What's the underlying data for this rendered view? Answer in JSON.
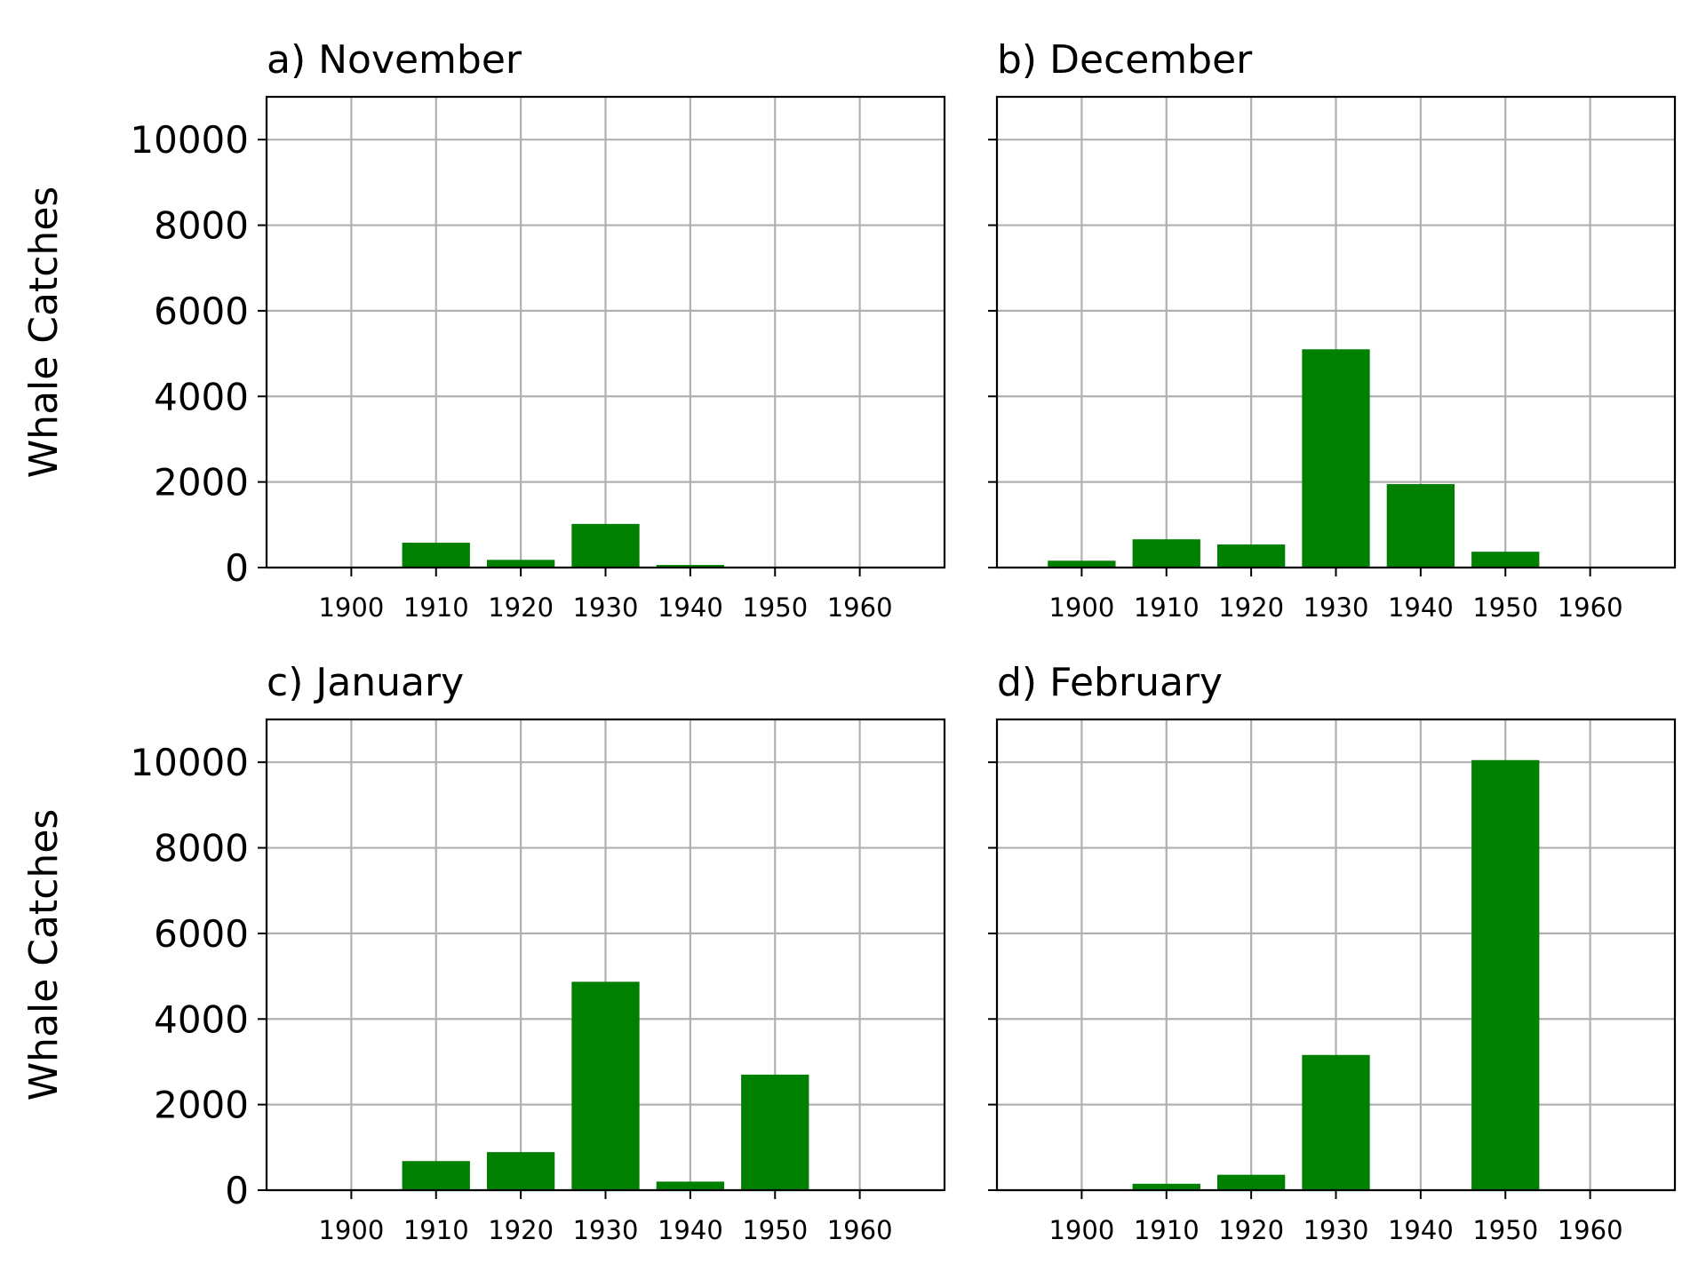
{
  "chart_data": [
    {
      "type": "bar",
      "title": "a) November",
      "ylabel": "Whale Catches",
      "x": [
        1900,
        1910,
        1920,
        1930,
        1940,
        1950,
        1960
      ],
      "values": [
        0,
        580,
        180,
        1020,
        60,
        0,
        0
      ],
      "ylim": [
        0,
        11000
      ],
      "xlim": [
        1890,
        1970
      ],
      "yticks": [
        0,
        2000,
        4000,
        6000,
        8000,
        10000
      ],
      "xticks": [
        "1900",
        "1910",
        "1920",
        "1930",
        "1940",
        "1950",
        "1960"
      ],
      "show_ytick_labels": true,
      "color": "#008000",
      "grid": true
    },
    {
      "type": "bar",
      "title": "b) December",
      "ylabel": "",
      "x": [
        1900,
        1910,
        1920,
        1930,
        1940,
        1950,
        1960
      ],
      "values": [
        160,
        660,
        540,
        5100,
        1950,
        370,
        0
      ],
      "ylim": [
        0,
        11000
      ],
      "xlim": [
        1890,
        1970
      ],
      "yticks": [
        0,
        2000,
        4000,
        6000,
        8000,
        10000
      ],
      "xticks": [
        "1900",
        "1910",
        "1920",
        "1930",
        "1940",
        "1950",
        "1960"
      ],
      "show_ytick_labels": false,
      "color": "#008000",
      "grid": true
    },
    {
      "type": "bar",
      "title": "c) January",
      "ylabel": "Whale Catches",
      "x": [
        1900,
        1910,
        1920,
        1930,
        1940,
        1950,
        1960
      ],
      "values": [
        0,
        680,
        890,
        4870,
        200,
        2700,
        0
      ],
      "ylim": [
        0,
        11000
      ],
      "xlim": [
        1890,
        1970
      ],
      "yticks": [
        0,
        2000,
        4000,
        6000,
        8000,
        10000
      ],
      "xticks": [
        "1900",
        "1910",
        "1920",
        "1930",
        "1940",
        "1950",
        "1960"
      ],
      "show_ytick_labels": true,
      "color": "#008000",
      "grid": true
    },
    {
      "type": "bar",
      "title": "d) February",
      "ylabel": "",
      "x": [
        1900,
        1910,
        1920,
        1930,
        1940,
        1950,
        1960
      ],
      "values": [
        0,
        150,
        360,
        3160,
        0,
        10050,
        0
      ],
      "ylim": [
        0,
        11000
      ],
      "xlim": [
        1890,
        1970
      ],
      "yticks": [
        0,
        2000,
        4000,
        6000,
        8000,
        10000
      ],
      "xticks": [
        "1900",
        "1910",
        "1920",
        "1930",
        "1940",
        "1950",
        "1960"
      ],
      "show_ytick_labels": false,
      "color": "#008000",
      "grid": true
    }
  ]
}
